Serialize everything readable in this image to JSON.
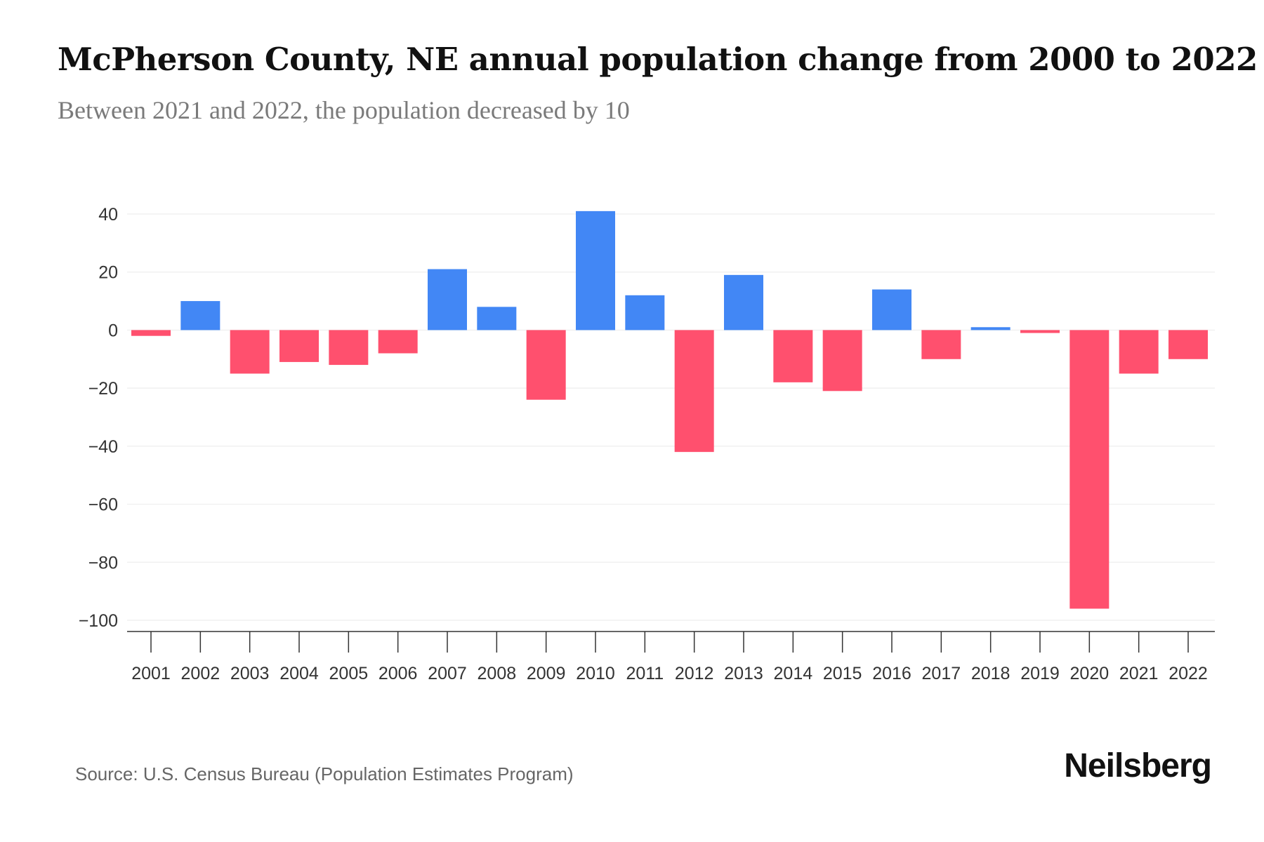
{
  "header": {
    "title": "McPherson County, NE annual population change from 2000 to 2022",
    "subtitle": "Between 2021 and 2022, the population decreased by 10"
  },
  "footer": {
    "source": "Source: U.S. Census Bureau (Population Estimates Program)",
    "brand": "Neilsberg"
  },
  "colors": {
    "positive": "#4287f5",
    "negative": "#ff506e",
    "grid": "#eeeeee",
    "axis": "#333333",
    "tick_label": "#333333"
  },
  "chart_data": {
    "type": "bar",
    "title": "McPherson County, NE annual population change from 2000 to 2022",
    "subtitle": "Between 2021 and 2022, the population decreased by 10",
    "xlabel": "",
    "ylabel": "",
    "categories": [
      "2001",
      "2002",
      "2003",
      "2004",
      "2005",
      "2006",
      "2007",
      "2008",
      "2009",
      "2010",
      "2011",
      "2012",
      "2013",
      "2014",
      "2015",
      "2016",
      "2017",
      "2018",
      "2019",
      "2020",
      "2021",
      "2022"
    ],
    "values": [
      -2,
      10,
      -15,
      -11,
      -12,
      -8,
      21,
      8,
      -24,
      41,
      12,
      -42,
      19,
      -18,
      -21,
      14,
      -10,
      1,
      -1,
      -96,
      -15,
      -10
    ],
    "ylim": [
      -100,
      40
    ],
    "yticks": [
      40,
      20,
      0,
      -20,
      -40,
      -60,
      -80,
      -100
    ],
    "ytick_labels": [
      "40",
      "20",
      "0",
      "−20",
      "−40",
      "−60",
      "−80",
      "−100"
    ],
    "grid": true,
    "legend": "none"
  }
}
